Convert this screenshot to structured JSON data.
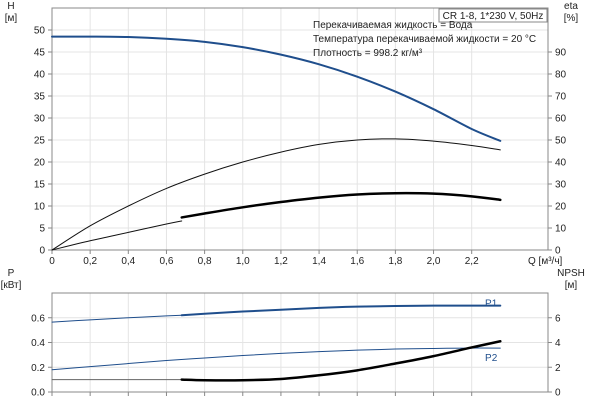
{
  "chart_data": [
    {
      "type": "line",
      "title": "CR 1-8, 1*230 V, 50Hz",
      "annotations": [
        "Перекачиваемая жидкость = Вода",
        "Температура перекачиваемой жидкости = 20 °C",
        "Плотность = 998.2 кг/м³"
      ],
      "xlabel": "Q [м³/ч]",
      "xlim": [
        0,
        2.6
      ],
      "x_ticks": [
        "0",
        "0,2",
        "0,4",
        "0,6",
        "0,8",
        "1,0",
        "1,2",
        "1,4",
        "1,6",
        "1,8",
        "2,0",
        "2,2"
      ],
      "ylabel_left": "H\n[м]",
      "ylim_left": [
        0,
        55
      ],
      "y_ticks_left": [
        "0",
        "5",
        "10",
        "15",
        "20",
        "25",
        "30",
        "35",
        "40",
        "45",
        "50"
      ],
      "ylabel_right": "eta\n[%]",
      "ylim_right": [
        0,
        110
      ],
      "y_ticks_right": [
        "0",
        "10",
        "20",
        "30",
        "40",
        "50",
        "60",
        "70",
        "80",
        "90"
      ],
      "grid": true,
      "series": [
        {
          "axis": "left",
          "color": "#1f4e8c",
          "width": 2,
          "x": [
            0,
            0.2,
            0.4,
            0.6,
            0.8,
            1.0,
            1.2,
            1.4,
            1.6,
            1.8,
            2.0,
            2.2,
            2.35
          ],
          "y": [
            48.5,
            48.5,
            48.4,
            48.0,
            47.3,
            46.1,
            44.4,
            42.2,
            39.4,
            36.0,
            32.0,
            27.5,
            24.8
          ]
        },
        {
          "axis": "right",
          "color": "#111111",
          "width": 1,
          "x": [
            0,
            0.2,
            0.4,
            0.6,
            0.8,
            1.0,
            1.2,
            1.4,
            1.6,
            1.8,
            2.0,
            2.2,
            2.35
          ],
          "y": [
            0,
            11,
            20,
            28,
            34.5,
            40,
            44.5,
            48,
            50,
            50.5,
            49.5,
            47.5,
            45.5
          ]
        },
        {
          "axis": "left",
          "color": "#111111",
          "width": 1,
          "x": [
            0,
            0.2,
            0.4,
            0.6,
            0.68
          ],
          "y": [
            0,
            2.1,
            4.0,
            5.9,
            6.6
          ]
        },
        {
          "axis": "left",
          "color": "#000000",
          "width": 2.5,
          "x": [
            0.68,
            0.8,
            1.0,
            1.2,
            1.4,
            1.6,
            1.8,
            2.0,
            2.2,
            2.35
          ],
          "y": [
            7.4,
            8.3,
            9.7,
            10.9,
            11.9,
            12.6,
            12.9,
            12.8,
            12.2,
            11.4
          ]
        }
      ]
    },
    {
      "type": "line",
      "xlim": [
        0,
        2.6
      ],
      "ylabel_left": "P\n[кВт]",
      "ylim_left": [
        0,
        0.8
      ],
      "y_ticks_left": [
        "0.0",
        "0.2",
        "0.4",
        "0.6"
      ],
      "ylabel_right": "NPSH\n[м]",
      "ylim_right": [
        0,
        8
      ],
      "y_ticks_right": [
        "0",
        "2",
        "4",
        "6"
      ],
      "grid": true,
      "series": [
        {
          "name": "P1",
          "axis": "left",
          "color": "#1f4e8c",
          "width": 1,
          "x": [
            0,
            0.2,
            0.4,
            0.6,
            0.68
          ],
          "y": [
            0.565,
            0.583,
            0.6,
            0.615,
            0.62
          ]
        },
        {
          "name": "P1",
          "axis": "left",
          "color": "#1f4e8c",
          "width": 2,
          "x": [
            0.68,
            0.8,
            1.0,
            1.2,
            1.4,
            1.6,
            1.8,
            2.0,
            2.2,
            2.35
          ],
          "y": [
            0.62,
            0.632,
            0.65,
            0.665,
            0.68,
            0.69,
            0.695,
            0.698,
            0.698,
            0.698
          ]
        },
        {
          "name": "P2",
          "axis": "left",
          "color": "#1f4e8c",
          "width": 1,
          "x": [
            0,
            0.2,
            0.4,
            0.6,
            0.8,
            1.0,
            1.2,
            1.4,
            1.6,
            1.8,
            2.0,
            2.2,
            2.35
          ],
          "y": [
            0.18,
            0.205,
            0.23,
            0.255,
            0.275,
            0.295,
            0.312,
            0.326,
            0.338,
            0.347,
            0.352,
            0.355,
            0.355
          ]
        },
        {
          "axis": "right",
          "color": "#666666",
          "width": 1,
          "x": [
            0,
            0.68
          ],
          "y": [
            1.0,
            1.0
          ]
        },
        {
          "axis": "right",
          "color": "#000000",
          "width": 2.5,
          "x": [
            0.68,
            0.8,
            1.0,
            1.2,
            1.4,
            1.6,
            1.8,
            2.0,
            2.2,
            2.35
          ],
          "y": [
            1.0,
            0.95,
            0.95,
            1.05,
            1.35,
            1.75,
            2.3,
            2.9,
            3.6,
            4.1
          ]
        }
      ],
      "series_labels": [
        {
          "text": "P1",
          "color": "#1f4e8c",
          "x": 2.27,
          "y": 0.72,
          "axis": "left"
        },
        {
          "text": "P2",
          "color": "#1f4e8c",
          "x": 2.27,
          "y": 0.28,
          "axis": "left"
        }
      ]
    }
  ]
}
